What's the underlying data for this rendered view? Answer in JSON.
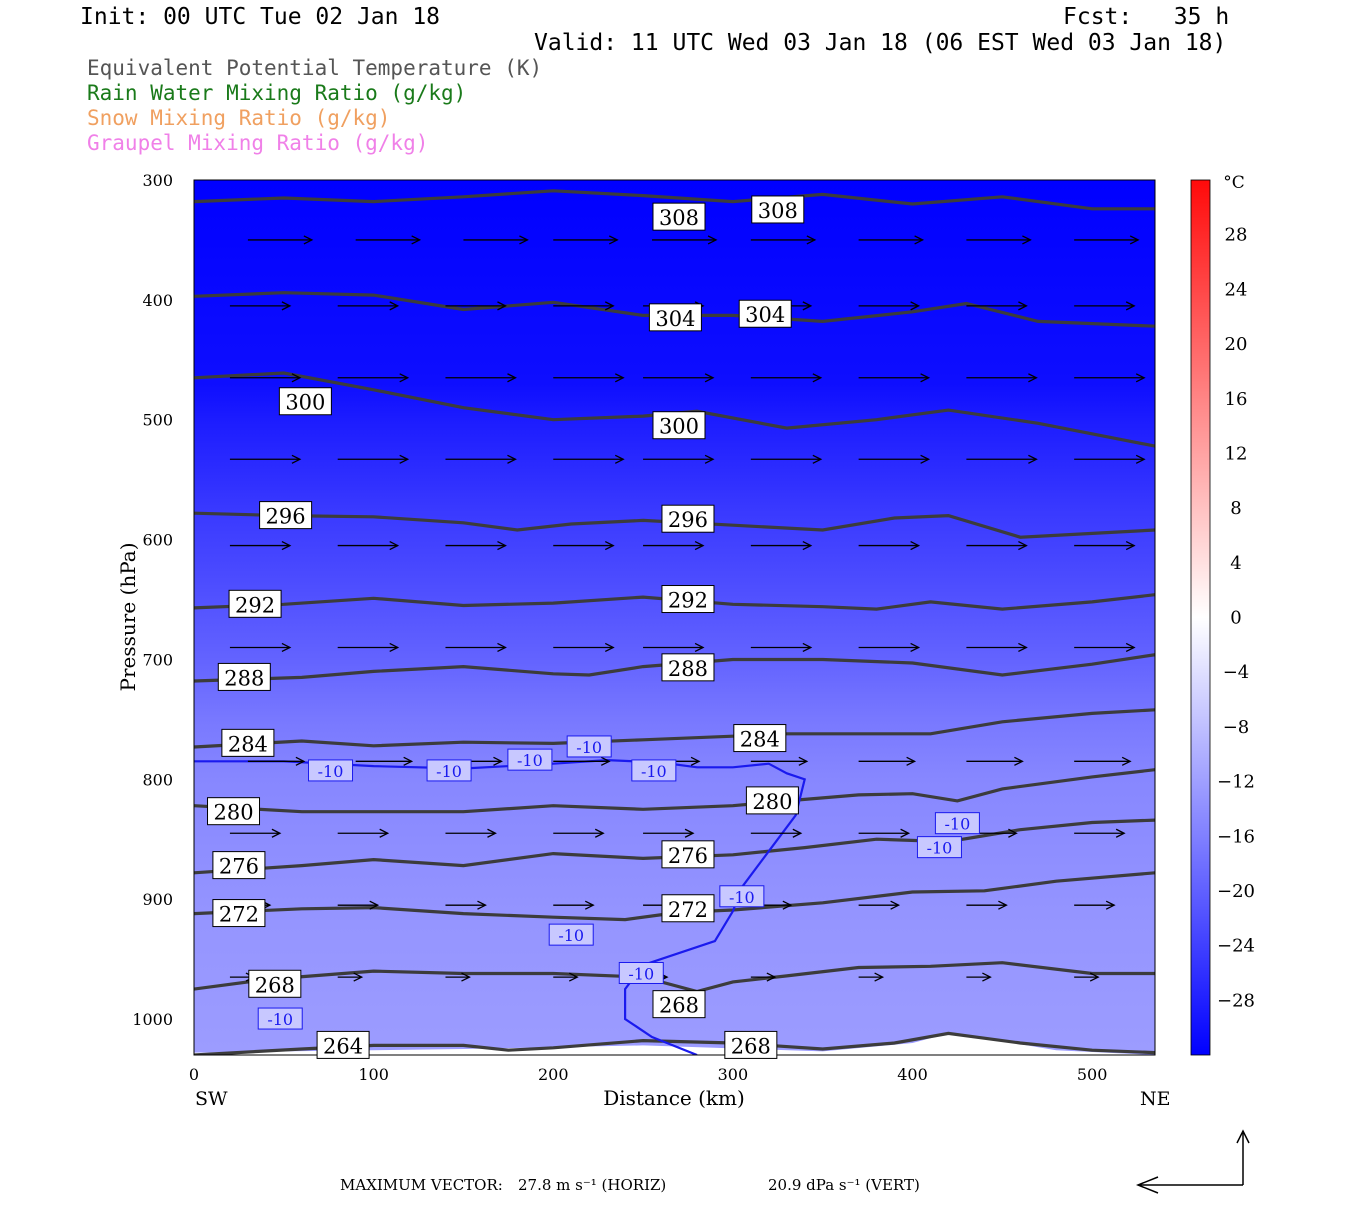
{
  "header": {
    "init": "Init: 00 UTC Tue 02 Jan 18",
    "fcst": "Fcst:   35 h",
    "valid": "Valid: 11 UTC Wed 03 Jan 18 (06 EST Wed 03 Jan 18)"
  },
  "legend": [
    {
      "text": "Equivalent Potential Temperature (K)",
      "color": "#555555"
    },
    {
      "text": "Rain Water Mixing Ratio (g/kg)",
      "color": "#1a7a1a"
    },
    {
      "text": "Snow Mixing Ratio (g/kg)",
      "color": "#f0a060"
    },
    {
      "text": "Graupel Mixing Ratio (g/kg)",
      "color": "#f080e8"
    }
  ],
  "footer": {
    "max_vector_label": "MAXIMUM VECTOR:",
    "horiz": "27.8 m s⁻¹ (HORIZ)",
    "vert": "20.9 dPa s⁻¹ (VERT)"
  },
  "chart_data": {
    "type": "heatmap",
    "xlabel": "Distance (km)",
    "ylabel": "Pressure (hPa)",
    "xlim": [
      0,
      535
    ],
    "ylim": [
      300,
      1030
    ],
    "y_scale": "linear",
    "x_ticks": [
      0,
      100,
      200,
      300,
      400,
      500
    ],
    "y_ticks": [
      300,
      400,
      500,
      600,
      700,
      800,
      900,
      1000
    ],
    "x_end_labels": {
      "left": "SW",
      "right": "NE"
    },
    "colorbar": {
      "unit": "°C",
      "ticks": [
        28,
        24,
        20,
        16,
        12,
        8,
        4,
        0,
        -4,
        -8,
        -12,
        -16,
        -20,
        -24,
        -28
      ],
      "range": [
        -32,
        32
      ]
    },
    "temperature_bands": [
      {
        "p": 300,
        "t": -32
      },
      {
        "p": 470,
        "t": -30
      },
      {
        "p": 500,
        "t": -28
      },
      {
        "p": 540,
        "t": -26
      },
      {
        "p": 575,
        "t": -24
      },
      {
        "p": 620,
        "t": -22
      },
      {
        "p": 660,
        "t": -20
      },
      {
        "p": 700,
        "t": -18
      },
      {
        "p": 750,
        "t": -15
      },
      {
        "p": 800,
        "t": -13
      },
      {
        "p": 860,
        "t": -12
      },
      {
        "p": 920,
        "t": -11
      },
      {
        "p": 1030,
        "t": -10
      }
    ],
    "theta_e_contours": [
      {
        "level": "308",
        "points": [
          [
            0,
            318
          ],
          [
            50,
            315
          ],
          [
            100,
            318
          ],
          [
            150,
            314
          ],
          [
            200,
            309
          ],
          [
            250,
            313
          ],
          [
            300,
            318
          ],
          [
            350,
            312
          ],
          [
            400,
            320
          ],
          [
            450,
            314
          ],
          [
            500,
            324
          ],
          [
            535,
            324
          ]
        ],
        "labels": [
          [
            270,
            331
          ],
          [
            325,
            325
          ]
        ]
      },
      {
        "level": "304",
        "points": [
          [
            0,
            397
          ],
          [
            50,
            394
          ],
          [
            100,
            396
          ],
          [
            150,
            408
          ],
          [
            200,
            402
          ],
          [
            250,
            413
          ],
          [
            300,
            413
          ],
          [
            350,
            418
          ],
          [
            400,
            410
          ],
          [
            430,
            403
          ],
          [
            470,
            418
          ],
          [
            535,
            422
          ]
        ],
        "labels": [
          [
            268,
            415
          ],
          [
            318,
            412
          ]
        ]
      },
      {
        "level": "300",
        "points": [
          [
            0,
            465
          ],
          [
            50,
            461
          ],
          [
            100,
            475
          ],
          [
            150,
            490
          ],
          [
            200,
            500
          ],
          [
            250,
            497
          ],
          [
            280,
            493
          ],
          [
            330,
            507
          ],
          [
            380,
            500
          ],
          [
            420,
            492
          ],
          [
            470,
            503
          ],
          [
            535,
            522
          ]
        ],
        "labels": [
          [
            62,
            485
          ],
          [
            270,
            505
          ]
        ]
      },
      {
        "level": "296",
        "points": [
          [
            0,
            578
          ],
          [
            50,
            580
          ],
          [
            100,
            581
          ],
          [
            150,
            586
          ],
          [
            180,
            592
          ],
          [
            210,
            587
          ],
          [
            250,
            584
          ],
          [
            300,
            588
          ],
          [
            350,
            592
          ],
          [
            390,
            582
          ],
          [
            420,
            580
          ],
          [
            460,
            598
          ],
          [
            535,
            592
          ]
        ],
        "labels": [
          [
            51,
            580
          ],
          [
            275,
            583
          ]
        ]
      },
      {
        "level": "292",
        "points": [
          [
            0,
            657
          ],
          [
            50,
            654
          ],
          [
            100,
            649
          ],
          [
            150,
            655
          ],
          [
            200,
            653
          ],
          [
            250,
            648
          ],
          [
            300,
            654
          ],
          [
            350,
            656
          ],
          [
            380,
            658
          ],
          [
            410,
            652
          ],
          [
            450,
            658
          ],
          [
            500,
            652
          ],
          [
            535,
            646
          ]
        ],
        "labels": [
          [
            34,
            654
          ],
          [
            275,
            650
          ]
        ]
      },
      {
        "level": "288",
        "points": [
          [
            0,
            718
          ],
          [
            60,
            715
          ],
          [
            100,
            710
          ],
          [
            150,
            706
          ],
          [
            200,
            712
          ],
          [
            220,
            713
          ],
          [
            250,
            706
          ],
          [
            300,
            700
          ],
          [
            350,
            700
          ],
          [
            400,
            703
          ],
          [
            450,
            713
          ],
          [
            500,
            704
          ],
          [
            535,
            696
          ]
        ],
        "labels": [
          [
            28,
            715
          ],
          [
            275,
            707
          ]
        ]
      },
      {
        "level": "284",
        "points": [
          [
            0,
            773
          ],
          [
            60,
            768
          ],
          [
            100,
            772
          ],
          [
            150,
            769
          ],
          [
            200,
            770
          ],
          [
            250,
            767
          ],
          [
            300,
            764
          ],
          [
            330,
            762
          ],
          [
            380,
            762
          ],
          [
            410,
            762
          ],
          [
            450,
            752
          ],
          [
            500,
            745
          ],
          [
            535,
            742
          ]
        ],
        "labels": [
          [
            30,
            770
          ],
          [
            315,
            766
          ]
        ]
      },
      {
        "level": "280",
        "points": [
          [
            0,
            822
          ],
          [
            60,
            827
          ],
          [
            100,
            827
          ],
          [
            150,
            827
          ],
          [
            200,
            822
          ],
          [
            250,
            825
          ],
          [
            300,
            822
          ],
          [
            330,
            818
          ],
          [
            370,
            813
          ],
          [
            400,
            812
          ],
          [
            425,
            818
          ],
          [
            450,
            808
          ],
          [
            500,
            798
          ],
          [
            535,
            792
          ]
        ],
        "labels": [
          [
            22,
            827
          ],
          [
            322,
            818
          ]
        ]
      },
      {
        "level": "276",
        "points": [
          [
            0,
            878
          ],
          [
            60,
            872
          ],
          [
            100,
            867
          ],
          [
            150,
            872
          ],
          [
            200,
            862
          ],
          [
            250,
            866
          ],
          [
            300,
            863
          ],
          [
            340,
            857
          ],
          [
            380,
            850
          ],
          [
            420,
            852
          ],
          [
            460,
            842
          ],
          [
            500,
            836
          ],
          [
            535,
            834
          ]
        ],
        "labels": [
          [
            25,
            872
          ],
          [
            275,
            863
          ]
        ]
      },
      {
        "level": "272",
        "points": [
          [
            0,
            912
          ],
          [
            60,
            908
          ],
          [
            100,
            907
          ],
          [
            150,
            912
          ],
          [
            200,
            915
          ],
          [
            240,
            917
          ],
          [
            270,
            911
          ],
          [
            300,
            909
          ],
          [
            350,
            903
          ],
          [
            400,
            894
          ],
          [
            440,
            893
          ],
          [
            480,
            885
          ],
          [
            535,
            878
          ]
        ],
        "labels": [
          [
            25,
            912
          ],
          [
            275,
            908
          ]
        ]
      },
      {
        "level": "268",
        "points": [
          [
            0,
            975
          ],
          [
            40,
            967
          ],
          [
            100,
            960
          ],
          [
            150,
            962
          ],
          [
            200,
            962
          ],
          [
            250,
            965
          ],
          [
            280,
            977
          ],
          [
            300,
            969
          ],
          [
            330,
            964
          ],
          [
            370,
            957
          ],
          [
            410,
            956
          ],
          [
            450,
            953
          ],
          [
            500,
            962
          ],
          [
            535,
            962
          ]
        ],
        "labels": [
          [
            45,
            971
          ],
          [
            270,
            988
          ],
          [
            310,
            1022
          ]
        ]
      },
      {
        "level": "264",
        "points": [
          [
            0,
            1030
          ],
          [
            60,
            1025
          ],
          [
            100,
            1022
          ],
          [
            150,
            1022
          ],
          [
            175,
            1026
          ],
          [
            200,
            1024
          ],
          [
            250,
            1018
          ],
          [
            300,
            1020
          ],
          [
            350,
            1025
          ],
          [
            390,
            1020
          ],
          [
            420,
            1012
          ],
          [
            460,
            1020
          ],
          [
            500,
            1026
          ],
          [
            535,
            1028
          ]
        ],
        "labels": [
          [
            83,
            1022
          ]
        ]
      }
    ],
    "minus10_isotherm": {
      "level": "-10",
      "points": [
        [
          0,
          785
        ],
        [
          50,
          785
        ],
        [
          100,
          789
        ],
        [
          150,
          791
        ],
        [
          200,
          787
        ],
        [
          230,
          784
        ],
        [
          260,
          786
        ],
        [
          280,
          790
        ],
        [
          300,
          790
        ],
        [
          320,
          787
        ],
        [
          330,
          795
        ],
        [
          340,
          800
        ],
        [
          335,
          830
        ],
        [
          320,
          860
        ],
        [
          305,
          890
        ],
        [
          300,
          910
        ],
        [
          290,
          935
        ],
        [
          270,
          945
        ],
        [
          250,
          955
        ],
        [
          240,
          975
        ],
        [
          240,
          1000
        ],
        [
          255,
          1015
        ],
        [
          280,
          1030
        ]
      ],
      "labels": [
        [
          76,
          793
        ],
        [
          142,
          793
        ],
        [
          187,
          784
        ],
        [
          220,
          773
        ],
        [
          256,
          793
        ],
        [
          305,
          898
        ],
        [
          210,
          930
        ],
        [
          249,
          962
        ],
        [
          48,
          1000
        ],
        [
          425,
          837
        ],
        [
          415,
          857
        ]
      ]
    },
    "vectors": [
      {
        "p": 350,
        "xs": [
          30,
          90,
          150,
          200,
          255,
          310,
          370,
          430,
          490
        ],
        "u": 32,
        "w": 0
      },
      {
        "p": 405,
        "xs": [
          20,
          80,
          140,
          200,
          250,
          310,
          370,
          430,
          490
        ],
        "u": 30,
        "w": 0
      },
      {
        "p": 465,
        "xs": [
          20,
          80,
          140,
          200,
          250,
          310,
          370,
          430,
          490
        ],
        "u": 35,
        "w": 0
      },
      {
        "p": 533,
        "xs": [
          20,
          80,
          140,
          200,
          250,
          310,
          370,
          430,
          490
        ],
        "u": 35,
        "w": 0
      },
      {
        "p": 605,
        "xs": [
          20,
          80,
          140,
          200,
          250,
          310,
          370,
          430,
          490
        ],
        "u": 30,
        "w": 0
      },
      {
        "p": 690,
        "xs": [
          20,
          80,
          140,
          200,
          250,
          310,
          370,
          430,
          490
        ],
        "u": 30,
        "w": 0
      },
      {
        "p": 785,
        "xs": [
          30,
          90,
          140,
          200,
          250,
          310,
          370,
          430,
          490
        ],
        "u": 28,
        "w": 0
      },
      {
        "p": 845,
        "xs": [
          20,
          80,
          140,
          200,
          250,
          310,
          370,
          430,
          490
        ],
        "u": 25,
        "w": 0
      },
      {
        "p": 905,
        "xs": [
          20,
          80,
          140,
          200,
          250,
          310,
          370,
          430,
          490
        ],
        "u": 20,
        "w": 0
      },
      {
        "p": 965,
        "xs": [
          20,
          80,
          140,
          200,
          250,
          310,
          370,
          430,
          490
        ],
        "u": 12,
        "w": 0
      }
    ]
  }
}
